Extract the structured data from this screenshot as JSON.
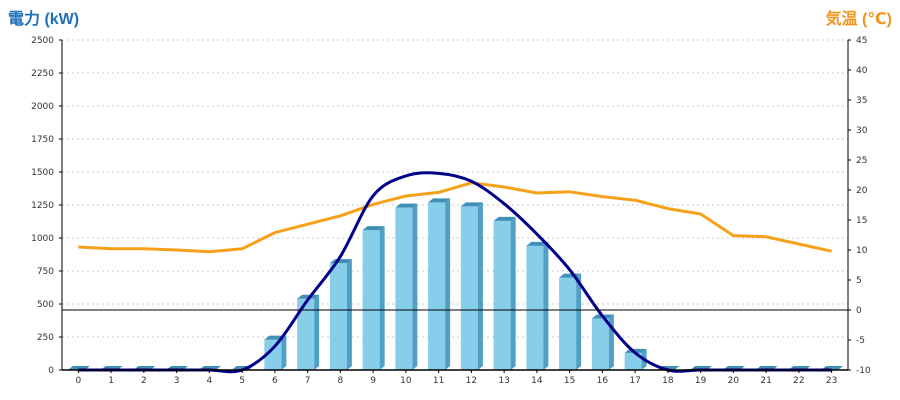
{
  "titles": {
    "left_axis_title": "電力 (kW)",
    "right_axis_title": "気温 (℃)"
  },
  "colors": {
    "left_title": "#1f6fb5",
    "right_title": "#f0961e",
    "bar_front": "#87ceea",
    "bar_side": "#4f9fc6",
    "bar_top": "#3f8fb8",
    "power_line": "#00008b",
    "temp_line": "#f7a11a",
    "grid": "#c8c8c8",
    "zero_line": "#000000"
  },
  "chart_data": {
    "type": "bar",
    "categories": [
      "0",
      "1",
      "2",
      "3",
      "4",
      "5",
      "6",
      "7",
      "8",
      "9",
      "10",
      "11",
      "12",
      "13",
      "14",
      "15",
      "16",
      "17",
      "18",
      "19",
      "20",
      "21",
      "22",
      "23"
    ],
    "series": [
      {
        "kind": "bar",
        "axis": "left",
        "values": [
          0,
          0,
          0,
          0,
          0,
          0,
          230,
          540,
          810,
          1060,
          1230,
          1270,
          1240,
          1130,
          940,
          700,
          390,
          130,
          0,
          0,
          0,
          0,
          0,
          0
        ]
      },
      {
        "kind": "line",
        "axis": "left",
        "values": [
          0,
          0,
          0,
          0,
          0,
          0,
          180,
          530,
          860,
          1320,
          1470,
          1490,
          1430,
          1260,
          1030,
          760,
          410,
          130,
          0,
          0,
          0,
          0,
          0,
          0
        ]
      },
      {
        "kind": "line",
        "axis": "right",
        "values": [
          10.5,
          10.2,
          10.2,
          10.0,
          9.7,
          10.2,
          12.9,
          14.3,
          15.7,
          17.6,
          19.0,
          19.6,
          21.2,
          20.5,
          19.5,
          19.7,
          18.9,
          18.3,
          16.9,
          16.0,
          12.4,
          12.2,
          11.0,
          9.8
        ]
      }
    ],
    "y_left": {
      "min": 0,
      "max": 2500,
      "ticks": [
        0,
        250,
        500,
        750,
        1000,
        1250,
        1500,
        1750,
        2000,
        2250,
        2500
      ]
    },
    "y_right": {
      "min": -10,
      "max": 45,
      "ticks": [
        -10,
        -5,
        0,
        5,
        10,
        15,
        20,
        25,
        30,
        35,
        40,
        45
      ]
    },
    "grid": true,
    "legend": "none"
  }
}
